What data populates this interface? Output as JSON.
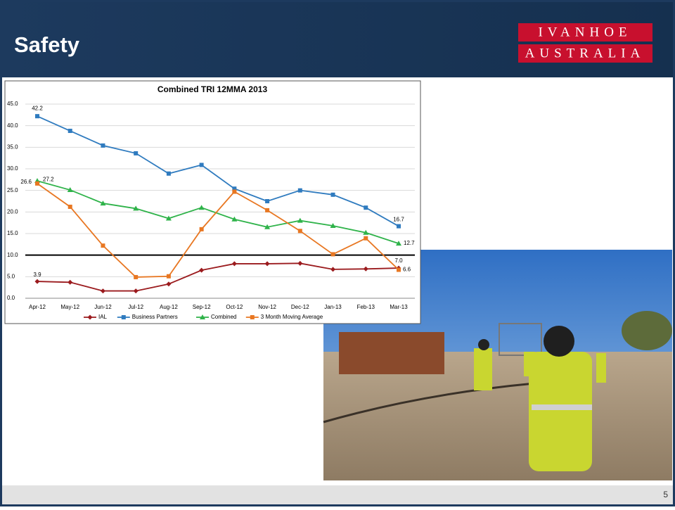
{
  "header": {
    "title": "Safety",
    "logo_top": "IVANHOE",
    "logo_bottom": "AUSTRALIA"
  },
  "footer": {
    "page_number": "5"
  },
  "chart_data": {
    "type": "line",
    "title": "Combined TRI 12MMA 2013",
    "categories": [
      "Apr-12",
      "May-12",
      "Jun-12",
      "Jul-12",
      "Aug-12",
      "Sep-12",
      "Oct-12",
      "Nov-12",
      "Dec-12",
      "Jan-13",
      "Feb-13",
      "Mar-13"
    ],
    "series": [
      {
        "name": "IAL",
        "color": "#9b1b1e",
        "marker": "diamond",
        "values": [
          3.9,
          3.7,
          1.7,
          1.7,
          3.3,
          6.5,
          8.0,
          8.0,
          8.1,
          6.7,
          6.8,
          7.0
        ],
        "value_labels": [
          "3.9",
          null,
          null,
          null,
          null,
          null,
          null,
          null,
          null,
          null,
          null,
          "7.0"
        ]
      },
      {
        "name": "Business Partners",
        "color": "#2f7bbf",
        "marker": "square",
        "values": [
          42.2,
          38.8,
          35.4,
          33.6,
          28.9,
          30.9,
          25.4,
          22.5,
          25.0,
          24.0,
          21.0,
          16.7
        ],
        "value_labels": [
          "42.2",
          null,
          null,
          null,
          null,
          null,
          null,
          null,
          null,
          null,
          null,
          "16.7"
        ]
      },
      {
        "name": "Combined",
        "color": "#2fb34a",
        "marker": "triangle",
        "values": [
          27.2,
          25.1,
          22.0,
          20.8,
          18.5,
          21.0,
          18.3,
          16.5,
          18.0,
          16.8,
          15.2,
          12.7
        ],
        "value_labels": [
          "27.2",
          null,
          null,
          null,
          null,
          null,
          null,
          null,
          null,
          null,
          null,
          "12.7"
        ]
      },
      {
        "name": "3 Month Moving Average",
        "color": "#e87722",
        "marker": "square",
        "values": [
          26.6,
          21.2,
          12.2,
          4.9,
          5.1,
          16.0,
          24.7,
          20.4,
          15.6,
          10.2,
          13.9,
          6.6
        ],
        "value_labels": [
          "26.6",
          null,
          null,
          null,
          null,
          null,
          null,
          null,
          null,
          null,
          null,
          "6.6"
        ]
      }
    ],
    "target_line": {
      "value": 10,
      "color": "#000000"
    },
    "ylim": [
      0,
      45
    ],
    "yticks": [
      {
        "value": 0,
        "label": "0.0"
      },
      {
        "value": 5,
        "label": "5.0"
      },
      {
        "value": 10,
        "label": "10.0"
      },
      {
        "value": 15,
        "label": "15.0"
      },
      {
        "value": 20,
        "label": "20.0"
      },
      {
        "value": 25,
        "label": "25.0"
      },
      {
        "value": 30,
        "label": "30.0"
      },
      {
        "value": 35,
        "label": "35.0"
      },
      {
        "value": 40,
        "label": "40.0"
      },
      {
        "value": 45,
        "label": "45.0"
      }
    ],
    "grid": true,
    "legend": "bottom"
  }
}
